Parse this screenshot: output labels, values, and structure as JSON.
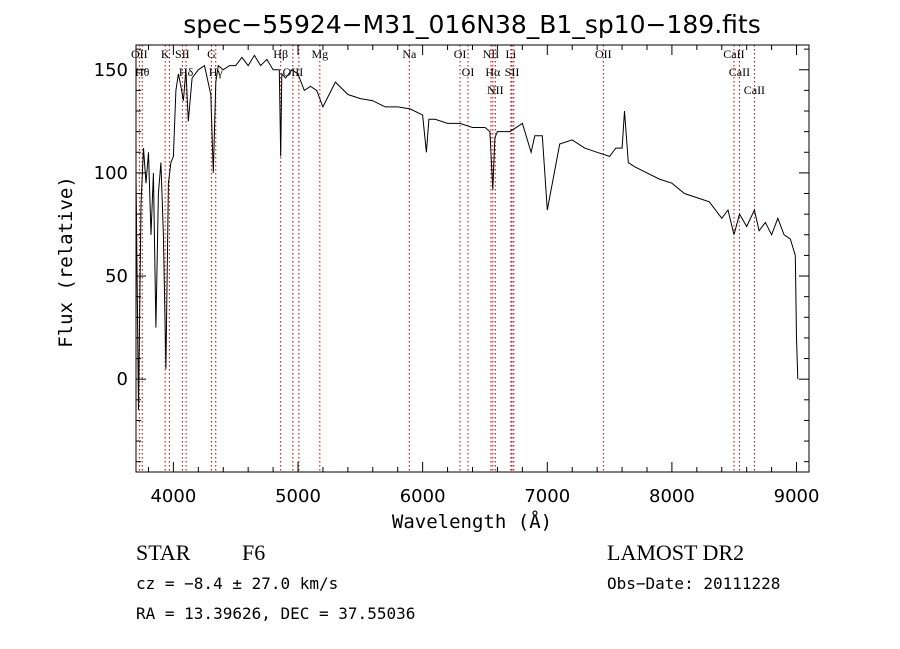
{
  "chart_data": {
    "type": "line",
    "title": "spec−55924−M31_016N38_B1_sp10−189.fits",
    "xlabel": "Wavelength (Å)",
    "ylabel": "Flux (relative)",
    "xlim": [
      3700,
      9100
    ],
    "ylim": [
      -45,
      162
    ],
    "xticks": [
      4000,
      5000,
      6000,
      7000,
      8000,
      9000
    ],
    "yticks": [
      0,
      50,
      100,
      150
    ],
    "x_minor_step": 200,
    "y_minor_step": 10,
    "series": [
      {
        "x": [
          3700,
          3720,
          3740,
          3760,
          3780,
          3800,
          3820,
          3840,
          3860,
          3880,
          3900,
          3920,
          3940,
          3960,
          3980,
          4000,
          4020,
          4040,
          4060,
          4080,
          4100,
          4120,
          4150,
          4200,
          4250,
          4300,
          4320,
          4340,
          4360,
          4400,
          4450,
          4500,
          4550,
          4600,
          4650,
          4700,
          4750,
          4800,
          4850,
          4861,
          4870,
          4900,
          4950,
          5000,
          5050,
          5100,
          5150,
          5200,
          5300,
          5400,
          5500,
          5600,
          5700,
          5800,
          5900,
          6000,
          6030,
          6050,
          6100,
          6200,
          6300,
          6400,
          6450,
          6500,
          6540,
          6563,
          6580,
          6600,
          6700,
          6800,
          6870,
          6900,
          6960,
          7000,
          7100,
          7200,
          7300,
          7400,
          7500,
          7550,
          7600,
          7620,
          7650,
          7700,
          7800,
          7900,
          8000,
          8100,
          8200,
          8300,
          8400,
          8450,
          8498,
          8542,
          8600,
          8662,
          8700,
          8750,
          8800,
          8850,
          8900,
          8950,
          8990,
          9000,
          9010
        ],
        "y": [
          100,
          -15,
          85,
          112,
          95,
          110,
          70,
          100,
          25,
          90,
          105,
          70,
          5,
          95,
          105,
          108,
          140,
          148,
          142,
          135,
          150,
          125,
          146,
          150,
          152,
          138,
          100,
          144,
          152,
          150,
          152,
          152,
          156,
          152,
          157,
          152,
          155,
          150,
          150,
          108,
          148,
          146,
          150,
          148,
          140,
          142,
          140,
          132,
          144,
          138,
          136,
          135,
          132,
          132,
          131,
          128,
          110,
          126,
          126,
          124,
          124,
          122,
          122,
          122,
          120,
          92,
          117,
          120,
          120,
          124,
          110,
          118,
          118,
          82,
          114,
          116,
          112,
          110,
          108,
          112,
          112,
          130,
          105,
          103,
          100,
          97,
          95,
          90,
          88,
          86,
          78,
          82,
          70,
          80,
          74,
          82,
          72,
          76,
          70,
          78,
          70,
          68,
          60,
          20,
          0
        ]
      }
    ],
    "line_marks": [
      {
        "wave": 3727,
        "label": "OII"
      },
      {
        "wave": 3750,
        "label": "Hθ"
      },
      {
        "wave": 3934,
        "label": "K"
      },
      {
        "wave": 3968,
        "label": ""
      },
      {
        "wave": 4072,
        "label": "SII"
      },
      {
        "wave": 4102,
        "label": "Hδ"
      },
      {
        "wave": 4305,
        "label": "G"
      },
      {
        "wave": 4340,
        "label": "Hγ"
      },
      {
        "wave": 4861,
        "label": "Hβ"
      },
      {
        "wave": 4959,
        "label": "OIII"
      },
      {
        "wave": 5007,
        "label": ""
      },
      {
        "wave": 5175,
        "label": "Mg"
      },
      {
        "wave": 5893,
        "label": "Na"
      },
      {
        "wave": 6300,
        "label": "OI"
      },
      {
        "wave": 6364,
        "label": "OI"
      },
      {
        "wave": 6548,
        "label": "NII"
      },
      {
        "wave": 6563,
        "label": "Hα"
      },
      {
        "wave": 6583,
        "label": "NII"
      },
      {
        "wave": 6708,
        "label": "Li"
      },
      {
        "wave": 6717,
        "label": "SII"
      },
      {
        "wave": 6731,
        "label": ""
      },
      {
        "wave": 7450,
        "label": "OII"
      },
      {
        "wave": 8498,
        "label": "CaII"
      },
      {
        "wave": 8542,
        "label": "CaII"
      },
      {
        "wave": 8662,
        "label": "CaII"
      }
    ]
  },
  "info": {
    "object_class": "STAR",
    "subclass": "F6",
    "survey": "LAMOST DR2",
    "redshift_text": "cz = −8.4 ± 27.0 km/s",
    "obs_date_text": "Obs−Date: 20111228",
    "coords_text": "RA =  13.39626, DEC =  37.55036"
  },
  "colors": {
    "reference_line": "#b00000",
    "spectrum": "#000000"
  }
}
